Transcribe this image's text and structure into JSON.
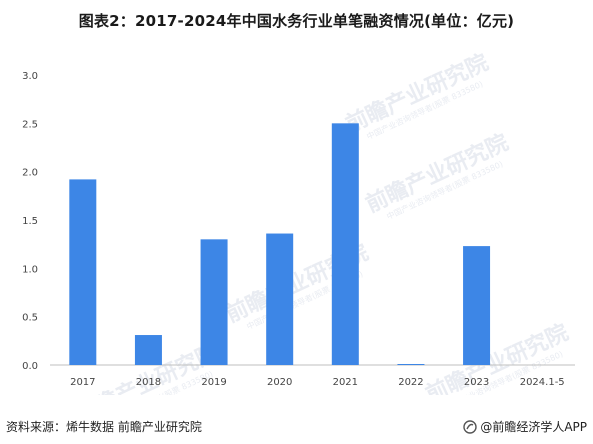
{
  "title": "图表2：2017-2024年中国水务行业单笔融资情况(单位：亿元)",
  "footer": {
    "source": "资料来源：烯牛数据 前瞻产业研究院",
    "brand": "@前瞻经济学人APP"
  },
  "watermark": {
    "main": "前瞻产业研究院",
    "sub": "中国产业咨询领导者(股票 833580)"
  },
  "colors": {
    "bar": "#3d86e6",
    "axis": "#bfbfbf",
    "watermark": "#e9ecf2"
  },
  "chart_data": {
    "type": "bar",
    "categories": [
      "2017",
      "2018",
      "2019",
      "2020",
      "2021",
      "2022",
      "2023",
      "2024.1-5"
    ],
    "values": [
      1.92,
      0.31,
      1.3,
      1.36,
      2.5,
      0.01,
      1.23,
      0
    ],
    "ylim": [
      0,
      3.0
    ],
    "yticks": [
      "0.0",
      "0.5",
      "1.0",
      "1.5",
      "2.0",
      "2.5",
      "3.0"
    ],
    "grid": false,
    "xlabel": "",
    "ylabel": ""
  }
}
